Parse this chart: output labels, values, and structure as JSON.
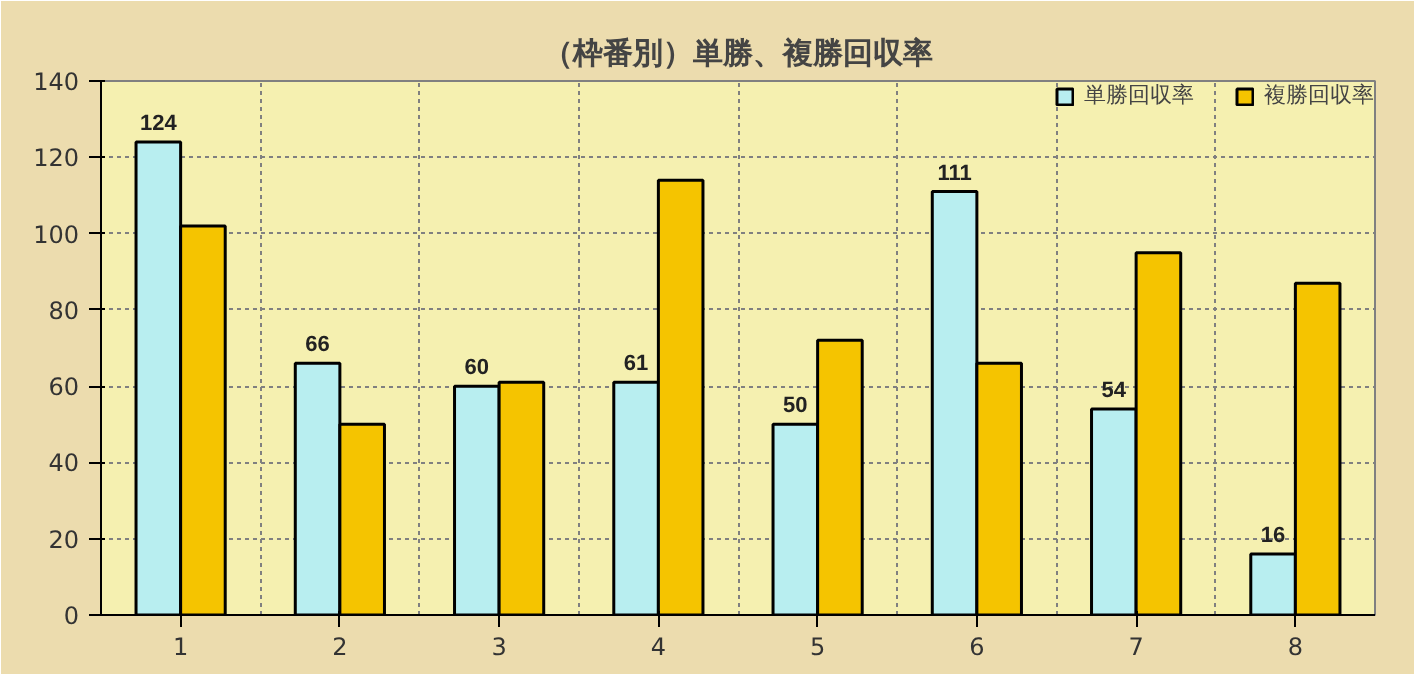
{
  "chart_data": {
    "type": "bar",
    "title": "（枠番別）単勝、複勝回収率",
    "categories": [
      "1",
      "2",
      "3",
      "4",
      "5",
      "6",
      "7",
      "8"
    ],
    "series": [
      {
        "name": "単勝回収率",
        "color": "#b8eef0",
        "values": [
          124,
          66,
          60,
          61,
          50,
          111,
          54,
          16
        ],
        "value_labels": [
          "124",
          "66",
          "60",
          "61",
          "50",
          "111",
          "54",
          "16"
        ]
      },
      {
        "name": "複勝回収率",
        "color": "#f5c400",
        "values": [
          102,
          50,
          61,
          114,
          72,
          66,
          95,
          87
        ]
      }
    ],
    "ylim": [
      0,
      140
    ],
    "yticks": [
      0,
      20,
      40,
      60,
      80,
      100,
      120,
      140
    ],
    "grid": true,
    "legend": "top right"
  }
}
